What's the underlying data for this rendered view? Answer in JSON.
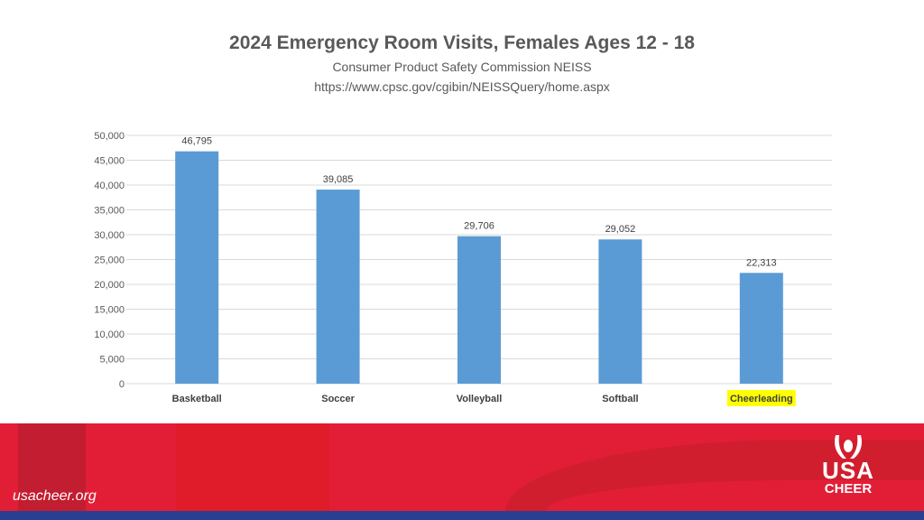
{
  "chart_data": {
    "type": "bar",
    "title": "2024 Emergency Room Visits, Females Ages 12 - 18",
    "subtitle": [
      "Consumer Product Safety Commission NEISS",
      "https://www.cpsc.gov/cgibin/NEISSQuery/home.aspx"
    ],
    "categories": [
      "Basketball",
      "Soccer",
      "Volleyball",
      "Softball",
      "Cheerleading"
    ],
    "values": [
      46795,
      39085,
      29706,
      29052,
      22313
    ],
    "data_labels": [
      "46,795",
      "39,085",
      "29,706",
      "29,052",
      "22,313"
    ],
    "highlighted_category": "Cheerleading",
    "yticks": [
      "0",
      "5,000",
      "10,000",
      "15,000",
      "20,000",
      "25,000",
      "30,000",
      "35,000",
      "40,000",
      "45,000",
      "50,000"
    ],
    "ylim": [
      0,
      50000
    ],
    "grid": true,
    "xlabel": "",
    "ylabel": "",
    "bar_color": "#5b9bd5",
    "highlight_color": "#ffff00"
  },
  "footer": {
    "site": "usacheer.org",
    "logo_text": "USA CHEER"
  }
}
